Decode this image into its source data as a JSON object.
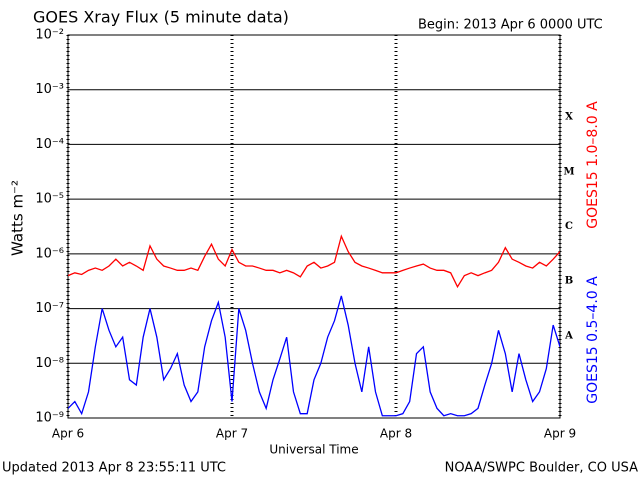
{
  "chart_data": {
    "type": "line",
    "title": "GOES Xray Flux (5 minute data)",
    "subtitle": "Begin:  2013 Apr 6 0000 UTC",
    "xlabel": "Universal Time",
    "ylabel": "Watts m⁻²",
    "footer_left": "Updated 2013 Apr  8 23:55:11 UTC",
    "footer_right": "NOAA/SWPC Boulder, CO USA",
    "log_scale": true,
    "grid": true,
    "legend": "right",
    "xlim": [
      0,
      72
    ],
    "xticks": [
      {
        "value": 0,
        "label": "Apr 6"
      },
      {
        "value": 24,
        "label": "Apr 7"
      },
      {
        "value": 48,
        "label": "Apr 8"
      },
      {
        "value": 72,
        "label": "Apr 9"
      }
    ],
    "ylim": [
      1e-09,
      0.01
    ],
    "yticks": [
      {
        "value": 1e-09,
        "label": "10⁻⁹"
      },
      {
        "value": 1e-08,
        "label": "10⁻⁸"
      },
      {
        "value": 1e-07,
        "label": "10⁻⁷"
      },
      {
        "value": 1e-06,
        "label": "10⁻⁶"
      },
      {
        "value": 1e-05,
        "label": "10⁻⁵"
      },
      {
        "value": 0.0001,
        "label": "10⁻⁴"
      },
      {
        "value": 0.001,
        "label": "10⁻³"
      },
      {
        "value": 0.01,
        "label": "10⁻²"
      }
    ],
    "flare_classes": [
      {
        "label": "A",
        "value": 1e-08
      },
      {
        "label": "B",
        "value": 1e-07
      },
      {
        "label": "C",
        "value": 1e-06
      },
      {
        "label": "M",
        "value": 1e-05
      },
      {
        "label": "X",
        "value": 0.0001
      }
    ],
    "x": [
      0,
      1,
      2,
      3,
      4,
      5,
      6,
      7,
      8,
      9,
      10,
      11,
      12,
      13,
      14,
      15,
      16,
      17,
      18,
      19,
      20,
      21,
      22,
      23,
      24,
      25,
      26,
      27,
      28,
      29,
      30,
      31,
      32,
      33,
      34,
      35,
      36,
      37,
      38,
      39,
      40,
      41,
      42,
      43,
      44,
      45,
      46,
      47,
      48,
      49,
      50,
      51,
      52,
      53,
      54,
      55,
      56,
      57,
      58,
      59,
      60,
      61,
      62,
      63,
      64,
      65,
      66,
      67,
      68,
      69,
      70,
      71,
      72
    ],
    "series": [
      {
        "name": "GOES15 1.0–8.0 A",
        "color": "#ff0000",
        "values": [
          4e-07,
          4.5e-07,
          4.2e-07,
          5e-07,
          5.5e-07,
          5e-07,
          6e-07,
          8e-07,
          6e-07,
          7e-07,
          6e-07,
          5e-07,
          1.4e-06,
          8e-07,
          6e-07,
          5.5e-07,
          5e-07,
          5e-07,
          5.5e-07,
          5e-07,
          9e-07,
          1.5e-06,
          8e-07,
          6e-07,
          1.2e-06,
          7e-07,
          6e-07,
          6e-07,
          5.5e-07,
          5e-07,
          5e-07,
          4.5e-07,
          5e-07,
          4.5e-07,
          3.8e-07,
          6e-07,
          7e-07,
          5.5e-07,
          6e-07,
          7e-07,
          2.1e-06,
          1.1e-06,
          7e-07,
          6e-07,
          5.5e-07,
          5e-07,
          4.5e-07,
          4.5e-07,
          4.5e-07,
          5e-07,
          5.5e-07,
          6e-07,
          6.5e-07,
          5.5e-07,
          5e-07,
          5e-07,
          4.5e-07,
          2.5e-07,
          4e-07,
          4.5e-07,
          4e-07,
          4.5e-07,
          5e-07,
          7e-07,
          1.3e-06,
          8e-07,
          7e-07,
          6e-07,
          5.5e-07,
          7e-07,
          6e-07,
          8e-07,
          1.1e-06
        ]
      },
      {
        "name": "GOES15 0.5–4.0 A",
        "color": "#0000ff",
        "values": [
          1.5e-09,
          2e-09,
          1.2e-09,
          3e-09,
          2e-08,
          1e-07,
          4e-08,
          2e-08,
          3e-08,
          5e-09,
          4e-09,
          3e-08,
          1e-07,
          3e-08,
          5e-09,
          8e-09,
          1.5e-08,
          4e-09,
          2e-09,
          3e-09,
          2e-08,
          6e-08,
          1.3e-07,
          3e-08,
          2e-09,
          1e-07,
          4e-08,
          1e-08,
          3e-09,
          1.5e-09,
          5e-09,
          1.2e-08,
          3e-08,
          3e-09,
          1.2e-09,
          1.2e-09,
          5e-09,
          1e-08,
          3e-08,
          6e-08,
          1.7e-07,
          5e-08,
          1e-08,
          3e-09,
          2e-08,
          3e-09,
          1.1e-09,
          1.1e-09,
          1.1e-09,
          1.2e-09,
          2e-09,
          1.5e-08,
          2e-08,
          3e-09,
          1.5e-09,
          1.1e-09,
          1.2e-09,
          1.1e-09,
          1.1e-09,
          1.2e-09,
          1.5e-09,
          4e-09,
          1e-08,
          4e-08,
          1.5e-08,
          3e-09,
          1.5e-08,
          5e-09,
          2e-09,
          3e-09,
          8e-09,
          5e-08,
          2e-08
        ]
      }
    ]
  }
}
